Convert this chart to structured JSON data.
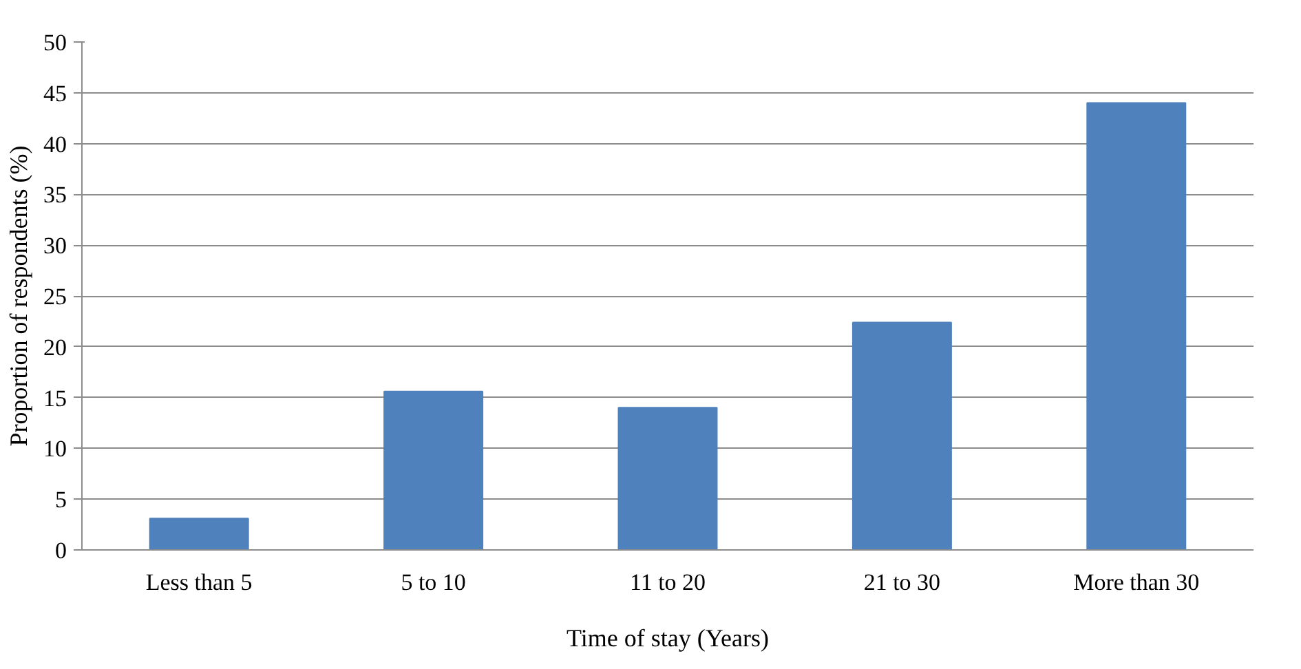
{
  "chart_data": {
    "type": "bar",
    "xlabel": "Time of stay (Years)",
    "ylabel": "Proportion of respondents (%)",
    "categories": [
      "Less than 5",
      "5 to 10",
      "11 to 20",
      "21 to 30",
      "More than 30"
    ],
    "values": [
      3.1,
      15.6,
      14.0,
      22.4,
      44.0
    ],
    "color": "#4f81bd",
    "ylim": [
      0,
      50
    ],
    "yticks": [
      0,
      5,
      10,
      15,
      20,
      25,
      30,
      35,
      40,
      45,
      50
    ],
    "grid": "y"
  }
}
